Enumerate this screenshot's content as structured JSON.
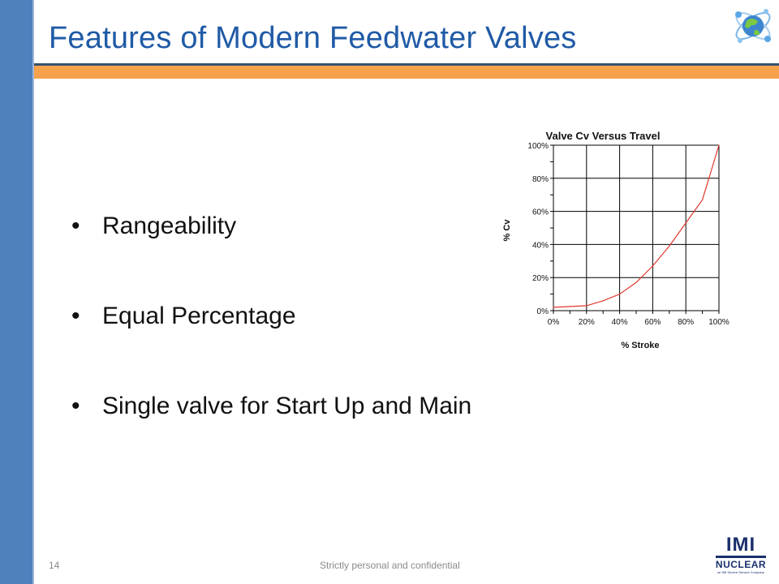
{
  "slide": {
    "title": "Features of Modern Feedwater Valves",
    "bullets": [
      "Rangeability",
      "Equal Percentage",
      "Single valve for Start Up and Main"
    ],
    "bullet_glyph": "•",
    "page_number": "14",
    "confidentiality": "Strictly personal and confidential"
  },
  "logo": {
    "name": "IMI",
    "division": "NUCLEAR",
    "tagline": "an IMI Severe Service Company",
    "color": "#1a2f6d"
  },
  "theme": {
    "title_color": "#1f5aa6",
    "left_bar_color": "#4f81bd",
    "accent_orange": "#f6a24c",
    "rule_dark": "#35536f",
    "globe_icon": "globe-icon"
  },
  "chart_data": {
    "type": "line",
    "title": "Valve Cv Versus Travel",
    "xlabel": "% Stroke",
    "ylabel": "% Cv",
    "x": [
      0,
      10,
      20,
      30,
      40,
      50,
      60,
      70,
      80,
      90,
      100
    ],
    "series": [
      {
        "values": [
          2,
          2.5,
          3,
          6,
          10,
          17,
          27,
          39,
          53,
          67,
          100
        ],
        "color": "#e03a2f"
      }
    ],
    "xlim": [
      0,
      100
    ],
    "ylim": [
      0,
      100
    ],
    "x_ticks": [
      "0%",
      "20%",
      "40%",
      "60%",
      "80%",
      "100%"
    ],
    "y_ticks": [
      "0%",
      "20%",
      "40%",
      "60%",
      "80%",
      "100%"
    ],
    "grid": true
  }
}
